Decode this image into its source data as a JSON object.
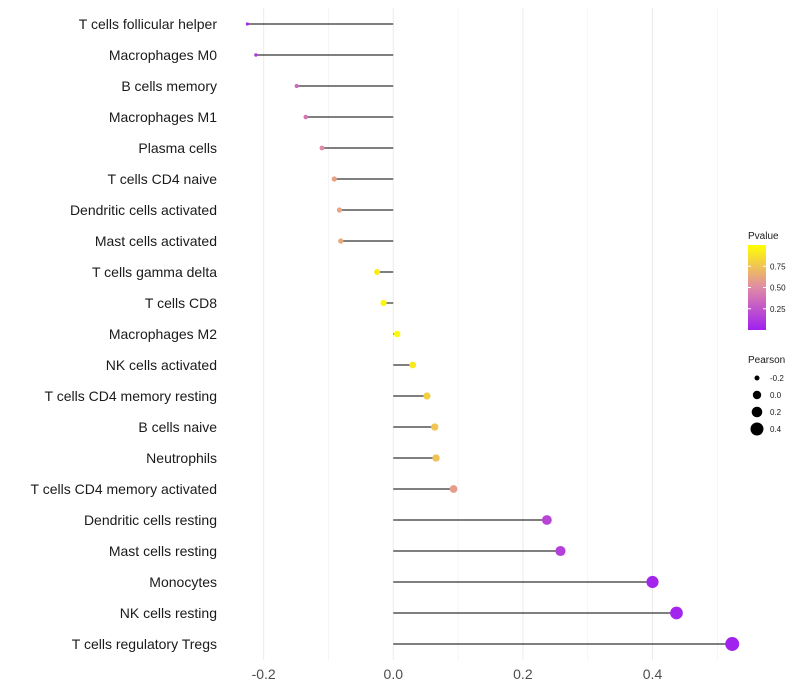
{
  "chart_data": {
    "type": "lollipop",
    "title": "",
    "xlabel": "",
    "ylabel": "",
    "xlim": [
      -0.255,
      0.535
    ],
    "x_ticks": [
      -0.2,
      0.0,
      0.2,
      0.4
    ],
    "x_tick_labels": [
      "-0.2",
      "0.0",
      "0.2",
      "0.4"
    ],
    "grid": true,
    "legend_position": "right",
    "categories": [
      "T cells follicular helper",
      "Macrophages M0",
      "B cells memory",
      "Macrophages M1",
      "Plasma cells",
      "T cells CD4 naive",
      "Dendritic cells activated",
      "Mast cells activated",
      "T cells gamma delta",
      "T cells CD8",
      "Macrophages M2",
      "NK cells activated",
      "T cells CD4 memory resting",
      "B cells naive",
      "Neutrophils",
      "T cells CD4 memory activated",
      "Dendritic cells resting",
      "Mast cells resting",
      "Monocytes",
      "NK cells resting",
      "T cells regulatory  Tregs"
    ],
    "pearson": [
      -0.225,
      -0.212,
      -0.149,
      -0.135,
      -0.11,
      -0.091,
      -0.083,
      -0.081,
      -0.025,
      -0.015,
      0.006,
      0.03,
      0.052,
      0.064,
      0.066,
      0.093,
      0.237,
      0.258,
      0.4,
      0.437,
      0.523
    ],
    "pvalue": [
      0.05,
      0.12,
      0.35,
      0.4,
      0.5,
      0.6,
      0.62,
      0.63,
      0.92,
      0.96,
      0.98,
      0.9,
      0.8,
      0.75,
      0.74,
      0.58,
      0.18,
      0.15,
      0.03,
      0.02,
      0.01
    ],
    "legend_pvalue": {
      "title": "Pvalue",
      "ticks": [
        0.25,
        0.5,
        0.75
      ],
      "tick_labels": [
        "0.25",
        "0.50",
        "0.75"
      ],
      "range": [
        0.0,
        1.0
      ],
      "colors": [
        "#a020f0",
        "#e08aa6",
        "#ffff00"
      ]
    },
    "legend_pearson": {
      "title": "Pearson",
      "values": [
        -0.2,
        0.0,
        0.2,
        0.4
      ],
      "labels": [
        "-0.2",
        "0.0",
        "0.2",
        "0.4"
      ]
    },
    "stem_color": "#333333"
  }
}
